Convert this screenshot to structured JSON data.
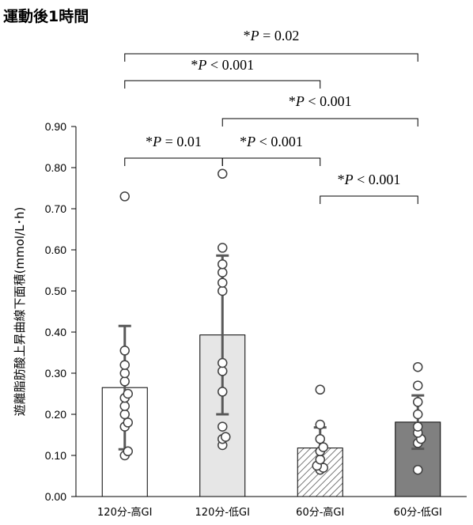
{
  "chart_data": {
    "type": "bar",
    "title": "運動後1時間",
    "ylabel": "遊離脂肪酸上昇曲線下面積(mmol/L･h)",
    "xlabel": "",
    "ylim": [
      0,
      0.9
    ],
    "yticks": [
      "0.00",
      "0.10",
      "0.20",
      "0.30",
      "0.40",
      "0.50",
      "0.60",
      "0.70",
      "0.80",
      "0.90"
    ],
    "categories": [
      "120分-高GI",
      "120分-低GI",
      "60分-高GI",
      "60分-低GI"
    ],
    "values": [
      0.265,
      0.393,
      0.118,
      0.181
    ],
    "error_sd": [
      0.15,
      0.193,
      0.05,
      0.065
    ],
    "bar_fills": [
      "#ffffff",
      "#e6e6e6",
      "hatched",
      "#808080"
    ],
    "individual_points": [
      [
        0.73,
        0.355,
        0.32,
        0.3,
        0.28,
        0.25,
        0.24,
        0.22,
        0.2,
        0.18,
        0.17,
        0.11,
        0.1
      ],
      [
        0.785,
        0.605,
        0.565,
        0.545,
        0.52,
        0.5,
        0.325,
        0.305,
        0.255,
        0.17,
        0.145,
        0.14,
        0.125
      ],
      [
        0.26,
        0.175,
        0.14,
        0.12,
        0.11,
        0.09,
        0.075,
        0.07,
        0.065
      ],
      [
        0.315,
        0.27,
        0.23,
        0.2,
        0.17,
        0.155,
        0.14,
        0.13,
        0.065
      ]
    ],
    "significance": [
      {
        "groups": [
          0,
          3
        ],
        "label": "*P = 0.02"
      },
      {
        "groups": [
          0,
          2
        ],
        "label": "*P < 0.001"
      },
      {
        "groups": [
          1,
          3
        ],
        "label": "*P < 0.001"
      },
      {
        "groups": [
          0,
          1
        ],
        "label": "*P = 0.01"
      },
      {
        "groups": [
          1,
          2
        ],
        "label": "*P < 0.001"
      },
      {
        "groups": [
          2,
          3
        ],
        "label": "*P < 0.001"
      }
    ],
    "grid": false,
    "legend": "none"
  }
}
